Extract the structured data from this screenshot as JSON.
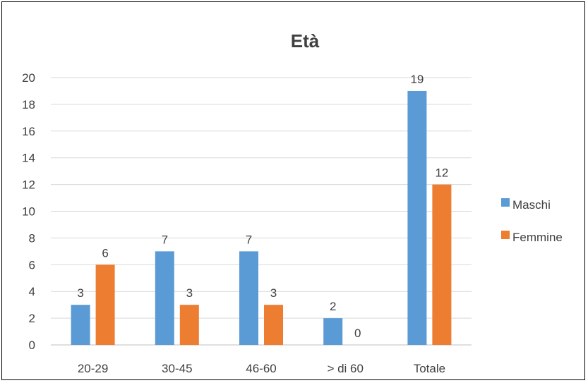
{
  "chart_data": {
    "type": "bar",
    "title": "Età",
    "categories": [
      "20-29",
      "30-45",
      "46-60",
      "> di 60",
      "Totale"
    ],
    "series": [
      {
        "name": "Maschi",
        "values": [
          3,
          7,
          7,
          2,
          19
        ],
        "color": "#5B9BD5"
      },
      {
        "name": "Femmine",
        "values": [
          6,
          3,
          3,
          0,
          12
        ],
        "color": "#ED7D31"
      }
    ],
    "ylim": [
      0,
      20
    ],
    "yticks": [
      0,
      2,
      4,
      6,
      8,
      10,
      12,
      14,
      16,
      18,
      20
    ],
    "grid": true,
    "legend": "right",
    "xlabel": "",
    "ylabel": ""
  }
}
